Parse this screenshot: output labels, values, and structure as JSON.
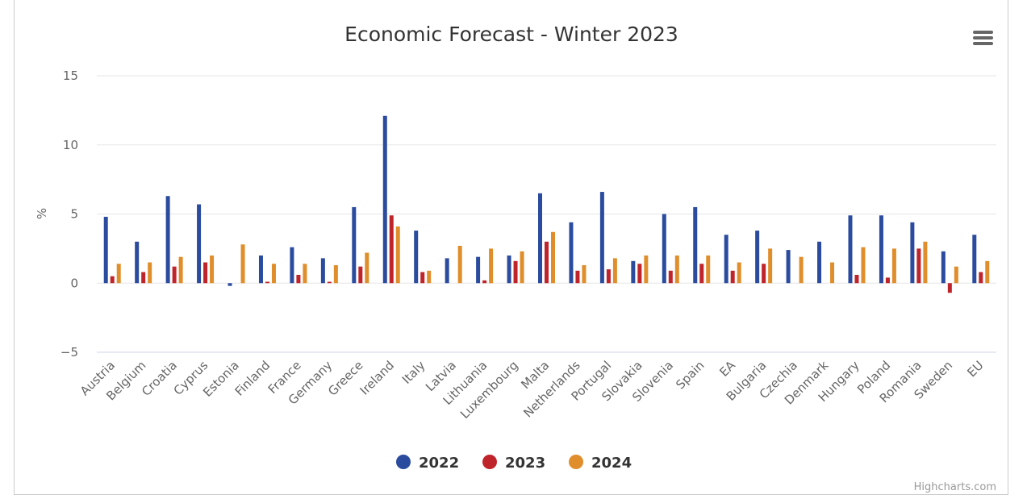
{
  "chart_data": {
    "type": "bar",
    "title": "Economic Forecast - Winter 2023",
    "ylabel": "%",
    "xlabel": "",
    "ylim": [
      -5,
      15
    ],
    "yticks": [
      15,
      10,
      5,
      0,
      -5
    ],
    "grid": true,
    "legend_position": "bottom-center",
    "categories": [
      "Austria",
      "Belgium",
      "Croatia",
      "Cyprus",
      "Estonia",
      "Finland",
      "France",
      "Germany",
      "Greece",
      "Ireland",
      "Italy",
      "Latvia",
      "Lithuania",
      "Luxembourg",
      "Malta",
      "Netherlands",
      "Portugal",
      "Slovakia",
      "Slovenia",
      "Spain",
      "EA",
      "Bulgaria",
      "Czechia",
      "Denmark",
      "Hungary",
      "Poland",
      "Romania",
      "Sweden",
      "EU"
    ],
    "series": [
      {
        "name": "2022",
        "color": "#2b4c9e",
        "values": [
          4.8,
          3.0,
          6.3,
          5.7,
          -0.2,
          2.0,
          2.6,
          1.8,
          5.5,
          12.1,
          3.8,
          1.8,
          1.9,
          2.0,
          6.5,
          4.4,
          6.6,
          1.6,
          5.0,
          5.5,
          3.5,
          3.8,
          2.4,
          3.0,
          4.9,
          4.9,
          4.4,
          2.3,
          3.5
        ]
      },
      {
        "name": "2023",
        "color": "#c0242b",
        "values": [
          0.5,
          0.8,
          1.2,
          1.5,
          0.0,
          0.1,
          0.6,
          0.1,
          1.2,
          4.9,
          0.8,
          0.0,
          0.2,
          1.6,
          3.0,
          0.9,
          1.0,
          1.4,
          0.9,
          1.4,
          0.9,
          1.4,
          0.0,
          0.0,
          0.6,
          0.4,
          2.5,
          -0.7,
          0.8
        ]
      },
      {
        "name": "2024",
        "color": "#e08e2b",
        "values": [
          1.4,
          1.5,
          1.9,
          2.0,
          2.8,
          1.4,
          1.4,
          1.3,
          2.2,
          4.1,
          0.9,
          2.7,
          2.5,
          2.3,
          3.7,
          1.3,
          1.8,
          2.0,
          2.0,
          2.0,
          1.5,
          2.5,
          1.9,
          1.5,
          2.6,
          2.5,
          3.0,
          1.2,
          1.6
        ]
      }
    ]
  },
  "ui": {
    "menu_icon": "hamburger-menu-icon",
    "credits": "Highcharts.com"
  }
}
